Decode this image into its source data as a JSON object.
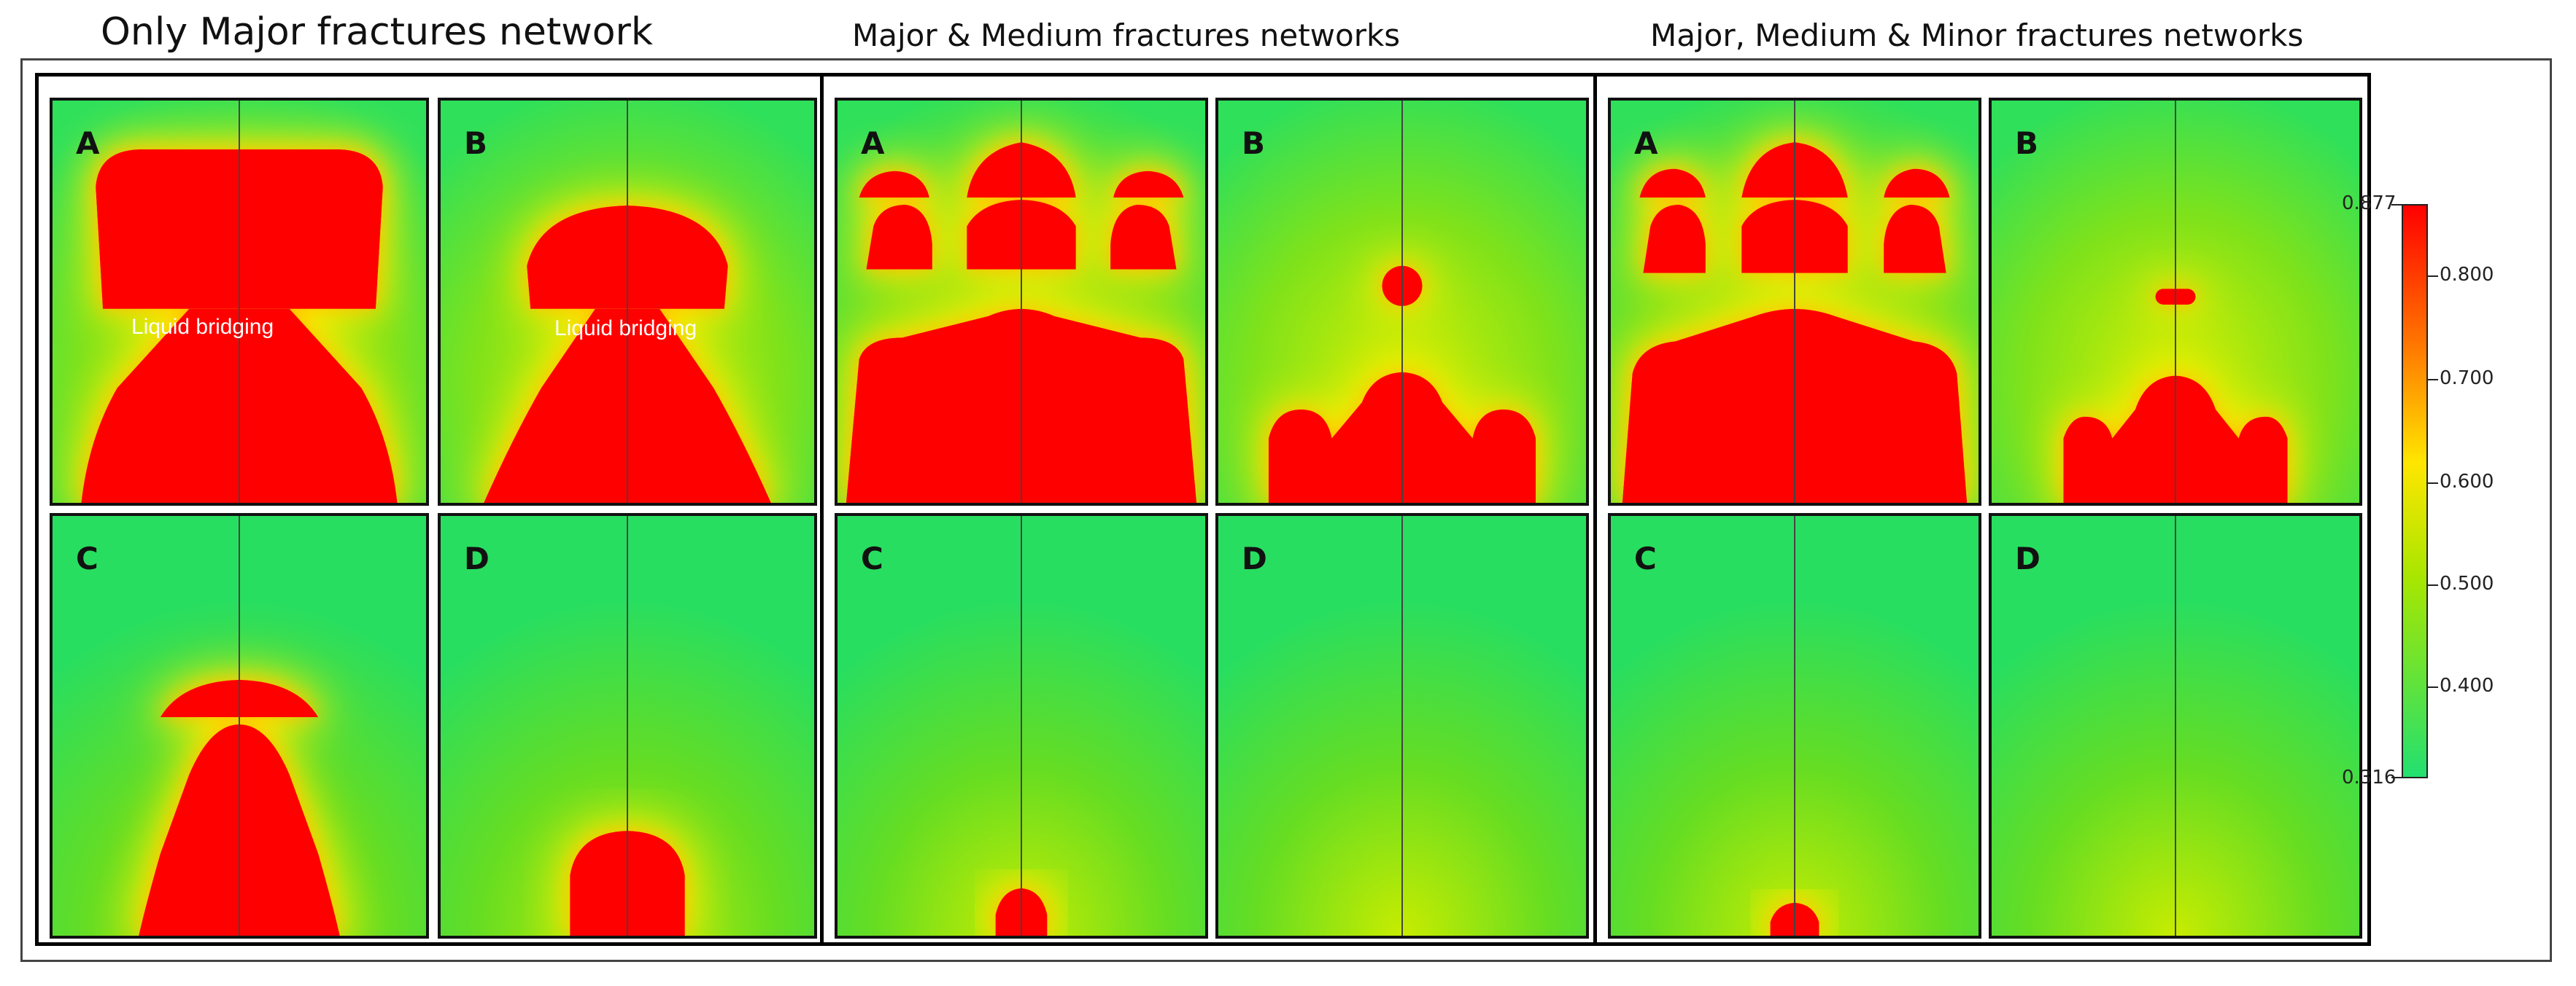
{
  "titles": {
    "major": "Only Major fractures network",
    "medium": "Major & Medium fractures networks",
    "minor": "Major, Medium & Minor fractures networks"
  },
  "panel_labels": {
    "a": "A",
    "b": "B",
    "c": "C",
    "d": "D"
  },
  "annotations": {
    "liquid_bridging": "Liquid bridging"
  },
  "colorbar": {
    "max_label": "0.877",
    "min_label": "0.316",
    "ticks": [
      "0.800",
      "0.700",
      "0.600",
      "0.500",
      "0.400"
    ],
    "colors": {
      "high": "#ff0000",
      "mid_high": "#ff8c00",
      "mid": "#ffe600",
      "mid_low": "#a8e600",
      "low": "#22e070"
    }
  }
}
